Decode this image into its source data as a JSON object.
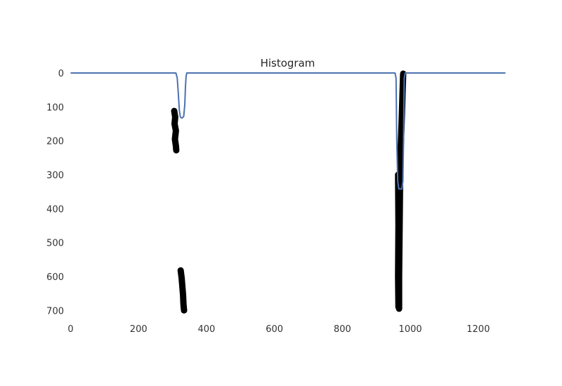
{
  "chart_data": {
    "type": "line",
    "title": "Histogram",
    "xlabel": "",
    "ylabel": "",
    "xlim": [
      0,
      1280
    ],
    "ylim": [
      720,
      0
    ],
    "y_inverted": true,
    "grid": false,
    "x_ticks": [
      "0",
      "200",
      "400",
      "600",
      "800",
      "1000",
      "1200"
    ],
    "y_ticks": [
      "0",
      "100",
      "200",
      "300",
      "400",
      "500",
      "600",
      "700"
    ],
    "colors": {
      "line": "#4c72b0",
      "strokes": "#000000"
    },
    "series": [
      {
        "type": "line",
        "x": [
          0,
          310,
          314,
          317,
          320,
          323,
          328,
          333,
          336,
          338,
          340,
          342,
          345,
          955,
          958,
          960,
          963,
          966,
          975,
          978,
          980,
          982,
          985,
          1280
        ],
        "y": [
          0,
          0,
          15,
          60,
          110,
          130,
          133,
          128,
          95,
          40,
          10,
          0,
          0,
          0,
          15,
          200,
          320,
          342,
          342,
          320,
          200,
          15,
          0,
          0
        ]
      },
      {
        "type": "scatter",
        "segments": [
          [
            [
              305,
              112
            ],
            [
              308,
              130
            ],
            [
              306,
              150
            ],
            [
              310,
              170
            ],
            [
              307,
              195
            ],
            [
              310,
              215
            ],
            [
              311,
              228
            ]
          ],
          [
            [
              324,
              582
            ],
            [
              327,
              605
            ],
            [
              329,
              630
            ],
            [
              331,
              655
            ],
            [
              332,
              680
            ],
            [
              334,
              700
            ]
          ],
          [
            [
              979,
              2
            ],
            [
              977,
              60
            ],
            [
              975,
              130
            ],
            [
              972,
              210
            ],
            [
              970,
              300
            ],
            [
              969,
              400
            ],
            [
              968,
              500
            ],
            [
              967,
              600
            ],
            [
              967,
              695
            ]
          ],
          [
            [
              964,
              300
            ],
            [
              965,
              450
            ],
            [
              964,
              600
            ],
            [
              965,
              690
            ]
          ]
        ]
      }
    ]
  }
}
